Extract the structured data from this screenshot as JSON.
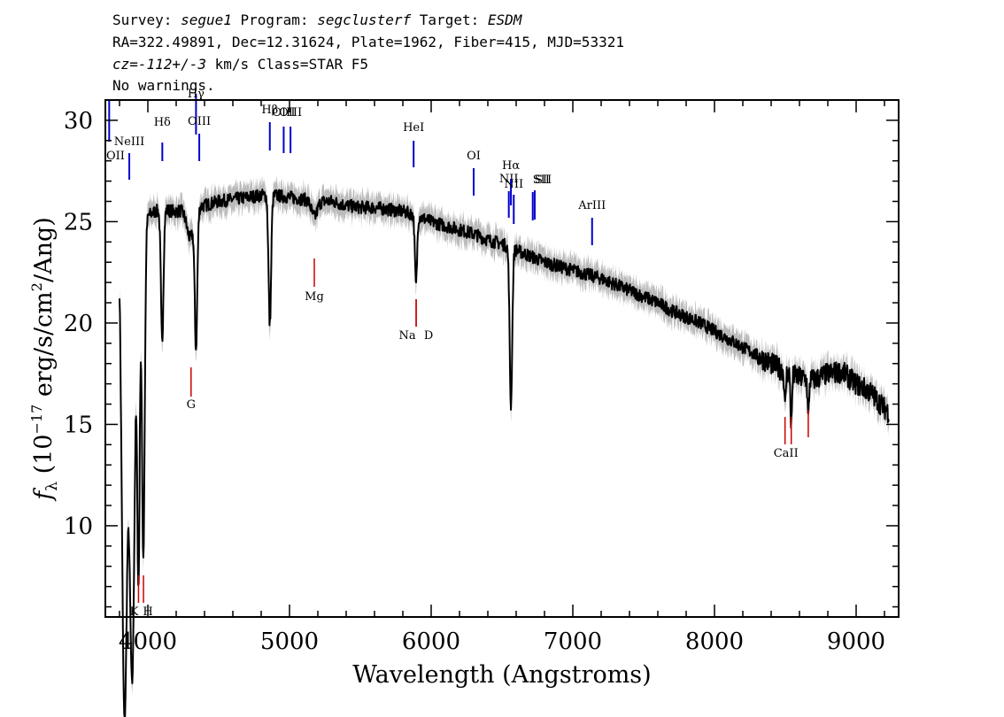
{
  "header": {
    "line1": {
      "survey_label": "Survey: ",
      "survey": "segue1",
      "program_label": " Program: ",
      "program": "segclusterf",
      "target_label": " Target: ",
      "target": "ESDM"
    },
    "line2": "RA=322.49891, Dec=12.31624, Plate=1962, Fiber=415, MJD=53321",
    "line3": {
      "cz": "cz=-112+/-3",
      "rest": " km/s Class=STAR F5"
    },
    "line4": "No warnings."
  },
  "chart_data": {
    "type": "line",
    "xlabel": "Wavelength (Angstroms)",
    "ylabel": "f_λ (10^-17 erg/s/cm^2/Ang)",
    "ylabel_parts": {
      "f": "f",
      "lambda": "λ",
      "mid": " (10",
      "exp1": "−17",
      "mid2": " erg/s/cm",
      "exp2": "2",
      "end": "/Ang)"
    },
    "xlim": [
      3700,
      9300
    ],
    "ylim": [
      5.5,
      31
    ],
    "x_ticks": [
      4000,
      5000,
      6000,
      7000,
      8000,
      9000
    ],
    "x_tick_labels": [
      "4000",
      "5000",
      "6000",
      "7000",
      "8000",
      "9000"
    ],
    "y_ticks": [
      10,
      15,
      20,
      25,
      30
    ],
    "y_tick_labels": [
      "10",
      "15",
      "20",
      "25",
      "30"
    ],
    "series": [
      {
        "kind": "flux",
        "color": "#000000",
        "continuum": [
          [
            3800,
            25.2
          ],
          [
            3850,
            24.8
          ],
          [
            3900,
            24.8
          ],
          [
            3950,
            25.0
          ],
          [
            4000,
            25.3
          ],
          [
            4050,
            25.5
          ],
          [
            4100,
            25.6
          ],
          [
            4200,
            25.5
          ],
          [
            4300,
            25.7
          ],
          [
            4400,
            25.8
          ],
          [
            4500,
            26.0
          ],
          [
            4600,
            26.1
          ],
          [
            4700,
            26.2
          ],
          [
            4800,
            26.3
          ],
          [
            4900,
            26.3
          ],
          [
            5000,
            26.2
          ],
          [
            5100,
            26.1
          ],
          [
            5200,
            26.0
          ],
          [
            5300,
            26.0
          ],
          [
            5400,
            25.8
          ],
          [
            5500,
            25.7
          ],
          [
            5600,
            25.7
          ],
          [
            5700,
            25.6
          ],
          [
            5800,
            25.5
          ],
          [
            5900,
            25.3
          ],
          [
            6000,
            25.0
          ],
          [
            6100,
            24.8
          ],
          [
            6200,
            24.6
          ],
          [
            6300,
            24.4
          ],
          [
            6400,
            24.1
          ],
          [
            6500,
            23.9
          ],
          [
            6600,
            23.6
          ],
          [
            6700,
            23.3
          ],
          [
            6800,
            23.0
          ],
          [
            6900,
            22.8
          ],
          [
            7000,
            22.6
          ],
          [
            7100,
            22.4
          ],
          [
            7200,
            22.2
          ],
          [
            7300,
            21.9
          ],
          [
            7400,
            21.6
          ],
          [
            7500,
            21.3
          ],
          [
            7600,
            21.0
          ],
          [
            7700,
            20.6
          ],
          [
            7800,
            20.3
          ],
          [
            7900,
            20.0
          ],
          [
            8000,
            19.6
          ],
          [
            8100,
            19.2
          ],
          [
            8200,
            18.8
          ],
          [
            8300,
            18.4
          ],
          [
            8400,
            18.0
          ],
          [
            8500,
            17.6
          ],
          [
            8600,
            17.3
          ],
          [
            8700,
            17.2
          ],
          [
            8800,
            17.5
          ],
          [
            8900,
            17.6
          ],
          [
            9000,
            17.0
          ],
          [
            9100,
            16.6
          ],
          [
            9200,
            15.8
          ],
          [
            9230,
            15.6
          ]
        ],
        "absorption": [
          [
            3835,
            24.3,
            18
          ],
          [
            3889,
            22.3,
            18
          ],
          [
            3934,
            17.0,
            9
          ],
          [
            3968,
            16.6,
            10
          ],
          [
            4101,
            6.5,
            9
          ],
          [
            4300,
            1.5,
            25
          ],
          [
            4340,
            6.6,
            9
          ],
          [
            4861,
            6.4,
            9
          ],
          [
            5175,
            0.8,
            20
          ],
          [
            5890,
            2.0,
            7
          ],
          [
            5896,
            1.8,
            7
          ],
          [
            6563,
            7.8,
            9
          ],
          [
            8498,
            1.8,
            5
          ],
          [
            8542,
            2.6,
            5
          ],
          [
            8662,
            2.0,
            5
          ]
        ]
      },
      {
        "kind": "error-band",
        "color": "#bbbbbb",
        "halfwidth": 0.7
      }
    ],
    "emission_lines": [
      {
        "label": "OII",
        "wavelength": 3727,
        "color": "#0000cc"
      },
      {
        "label": "NeIII",
        "wavelength": 3869,
        "color": "#0000cc"
      },
      {
        "label": "Hδ",
        "wavelength": 4102,
        "color": "#0000cc"
      },
      {
        "label": "Hγ",
        "wavelength": 4340,
        "color": "#0000cc"
      },
      {
        "label": "OIII",
        "wavelength": 4363,
        "color": "#0000cc"
      },
      {
        "label": "Hβ",
        "wavelength": 4861,
        "color": "#0000cc"
      },
      {
        "label": "OIII",
        "wavelength": 4959,
        "color": "#0000cc"
      },
      {
        "label": "OIII",
        "wavelength": 5007,
        "color": "#0000cc"
      },
      {
        "label": "HeI",
        "wavelength": 5876,
        "color": "#0000cc"
      },
      {
        "label": "OI",
        "wavelength": 6300,
        "color": "#0000cc"
      },
      {
        "label": "NII",
        "wavelength": 6548,
        "color": "#0000cc"
      },
      {
        "label": "Hα",
        "wavelength": 6563,
        "color": "#0000cc"
      },
      {
        "label": "NII",
        "wavelength": 6583,
        "color": "#0000cc"
      },
      {
        "label": "SII",
        "wavelength": 6717,
        "color": "#0000cc"
      },
      {
        "label": "SII",
        "wavelength": 6731,
        "color": "#0000cc"
      },
      {
        "label": "ArIII",
        "wavelength": 7136,
        "color": "#0000cc"
      }
    ],
    "absorption_lines": [
      {
        "label": "K",
        "wavelength": 3934,
        "color": "#cc0000"
      },
      {
        "label": "H",
        "wavelength": 3969,
        "color": "#cc0000"
      },
      {
        "label": "G",
        "wavelength": 4305,
        "color": "#cc0000"
      },
      {
        "label": "Mg",
        "wavelength": 5175,
        "color": "#cc0000"
      },
      {
        "label": "Na",
        "wavelength": 5894,
        "color": "#cc0000"
      },
      {
        "label": "D",
        "wavelength": 5894,
        "color": "#cc0000"
      },
      {
        "label": "CaII",
        "wavelength": 8498,
        "color": "#cc0000"
      },
      {
        "label": "CaII",
        "wavelength": 8542,
        "color": "#cc0000"
      },
      {
        "label": "CaII",
        "wavelength": 8662,
        "color": "#cc0000"
      }
    ]
  }
}
